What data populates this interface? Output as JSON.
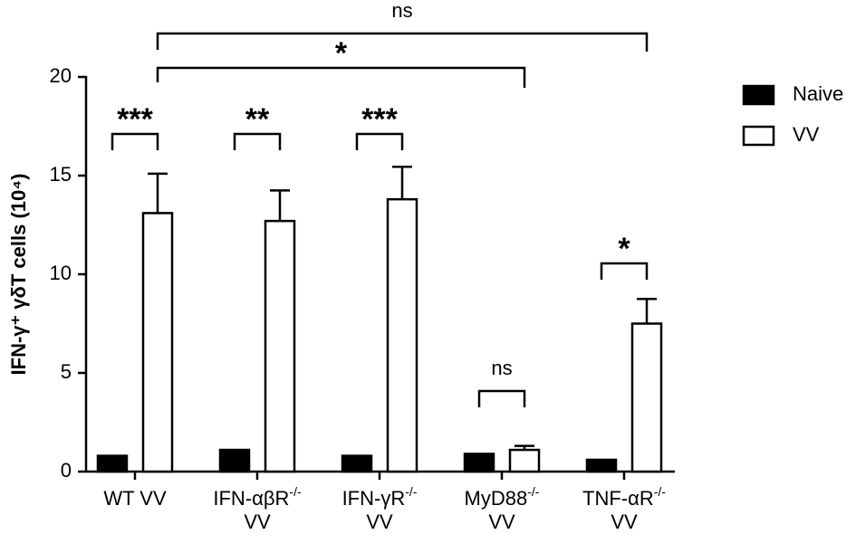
{
  "chart_data": {
    "type": "bar",
    "y_label": "IFN-γ⁺ γδT cells (10⁴)",
    "categories": [
      "WT VV",
      "IFN-αβR-/- VV",
      "IFN-γR-/- VV",
      "MyD88-/- VV",
      "TNF-αR-/- VV"
    ],
    "series": [
      {
        "name": "Naive",
        "color": "#000000",
        "values": [
          0.8,
          1.1,
          0.8,
          0.9,
          0.6
        ]
      },
      {
        "name": "VV",
        "color": "#ffffff",
        "values": [
          13.1,
          12.7,
          13.8,
          1.1,
          7.5
        ],
        "errors": [
          2.0,
          1.55,
          1.65,
          0.2,
          1.25
        ]
      }
    ],
    "ylim": [
      0,
      20
    ],
    "yticks": [
      0,
      5,
      10,
      15,
      20
    ],
    "annotations": [
      "***",
      "**",
      "***",
      "ns",
      "*",
      "*",
      "ns"
    ],
    "legend": "right"
  }
}
